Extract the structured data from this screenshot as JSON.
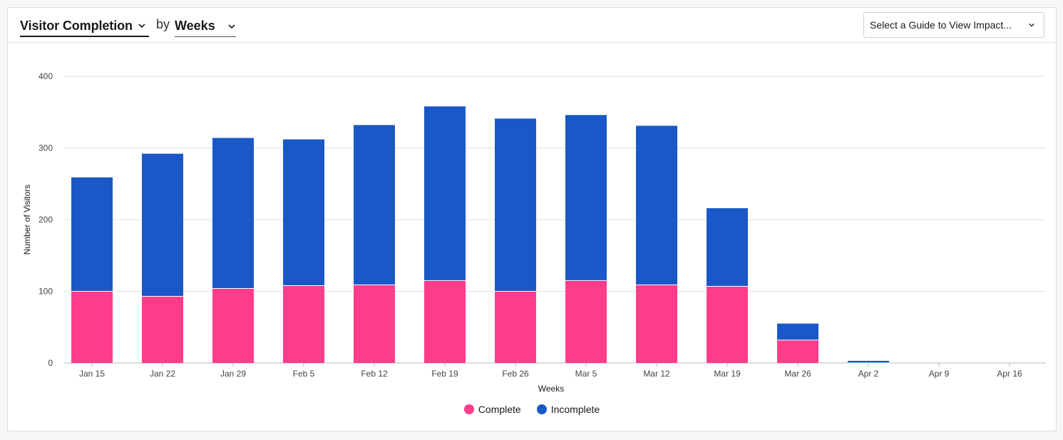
{
  "header": {
    "metric_label": "Visitor Completion",
    "by_label": "by",
    "period_label": "Weeks",
    "guide_placeholder": "Select a Guide to View Impact..."
  },
  "colors": {
    "complete": "#ff3d8b",
    "incomplete": "#1a58c8"
  },
  "chart_data": {
    "type": "bar",
    "stacked": true,
    "xlabel": "Weeks",
    "ylabel": "Number of Visitors",
    "ylim": [
      0,
      400
    ],
    "yticks": [
      0,
      100,
      200,
      300,
      400
    ],
    "grid": true,
    "legend_position": "bottom",
    "categories": [
      "Jan 15",
      "Jan 22",
      "Jan 29",
      "Feb 5",
      "Feb 12",
      "Feb 19",
      "Feb 26",
      "Mar 5",
      "Mar 12",
      "Mar 19",
      "Mar 26",
      "Apr 2",
      "Apr 9",
      "Apr 16"
    ],
    "series": [
      {
        "name": "Complete",
        "color": "#ff3d8b",
        "values": [
          100,
          93,
          104,
          108,
          109,
          115,
          100,
          115,
          109,
          107,
          32,
          0,
          0,
          0
        ]
      },
      {
        "name": "Incomplete",
        "color": "#1a58c8",
        "values": [
          159,
          199,
          210,
          204,
          223,
          243,
          241,
          231,
          222,
          109,
          23,
          3,
          0,
          0
        ]
      }
    ]
  }
}
